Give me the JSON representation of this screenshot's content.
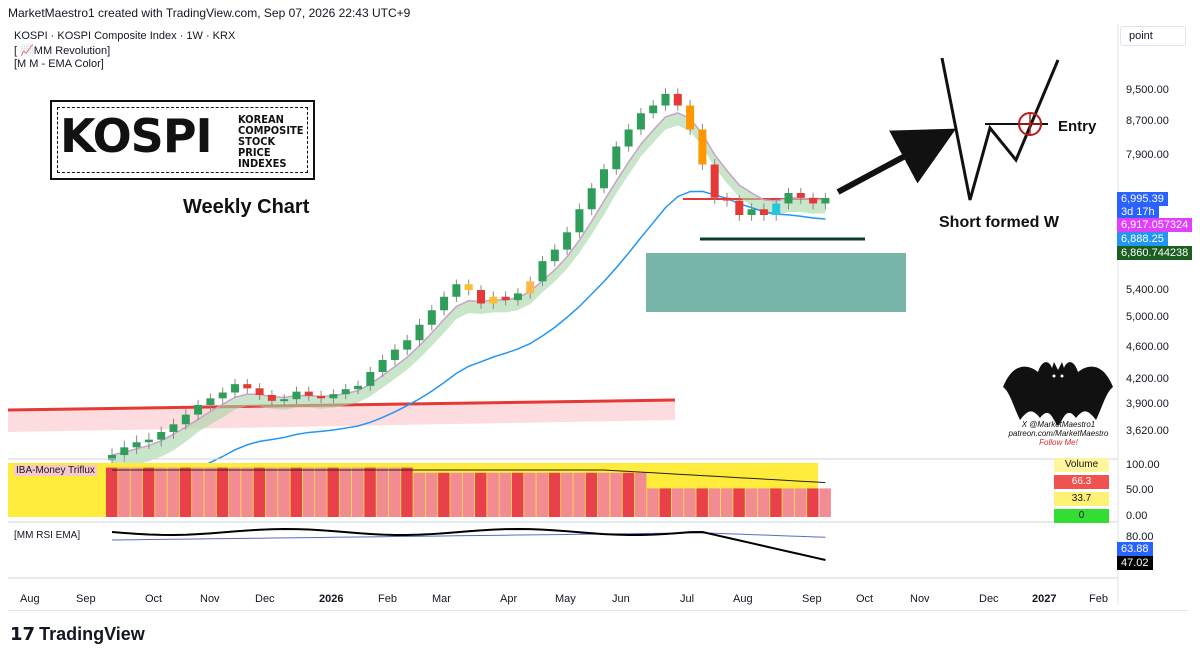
{
  "header": {
    "creator_line": "MarketMaestro1 created with TradingView.com, Sep 07, 2026 22:43 UTC+9",
    "symbol_line": "KOSPI · KOSPI Composite Index · 1W · KRX",
    "indicator_1": "[ 📈MM Revolution]",
    "indicator_2": "[M M - EMA Color]",
    "scale_button": "point"
  },
  "annotations": {
    "logo_main": "KOSPI",
    "logo_sub_1": "KOREAN",
    "logo_sub_2": "COMPOSITE",
    "logo_sub_3": "STOCK",
    "logo_sub_4": "PRICE",
    "logo_sub_5": "INDEXES",
    "weekly_chart": "Weekly Chart",
    "short_formed_w": "Short formed W",
    "entry": "Entry",
    "bat_line_1": "X @MarketMaestro1",
    "bat_line_2": "patreon.com/MarketMaestro",
    "bat_line_3": "Follow Me!"
  },
  "price_axis": {
    "labels": [
      "9,500.00",
      "8,700.00",
      "7,900.00",
      "5,400.00",
      "5,000.00",
      "4,600.00",
      "4,200.00",
      "3,900.00",
      "3,620.00"
    ],
    "tags": [
      {
        "text": "6,995.39",
        "color": "#2962ff"
      },
      {
        "text": "3d 17h",
        "color": "#2962ff"
      },
      {
        "text": "6,917.057324",
        "color": "#e040fb"
      },
      {
        "text": "6,888.25",
        "color": "#2196f3"
      },
      {
        "text": "6,860.744238",
        "color": "#1b5e20"
      }
    ]
  },
  "time_axis": {
    "labels": [
      "Aug",
      "Sep",
      "Oct",
      "Nov",
      "Dec",
      "2026",
      "Feb",
      "Mar",
      "Apr",
      "May",
      "Jun",
      "Jul",
      "Aug",
      "Sep",
      "Oct",
      "Nov",
      "Dec",
      "2027",
      "Feb"
    ]
  },
  "triflux_pane": {
    "title": "IBA-Money Triflux",
    "axis": [
      "100.00",
      "50.00",
      "0.00"
    ],
    "legend_title": "Volume",
    "legend_values": [
      "66.3",
      "33.7",
      "0"
    ]
  },
  "rsi_pane": {
    "title": "[MM RSI EMA]",
    "axis": [
      "80.00"
    ],
    "tags": [
      {
        "text": "63.88",
        "color": "#2962ff"
      },
      {
        "text": "47.02",
        "color": "#000000"
      }
    ]
  },
  "branding": {
    "tv_name": "TradingView"
  },
  "colors": {
    "up": "#26a269",
    "down": "#e53935",
    "ema": "#2196f3",
    "support_zone": "#4a9c8c",
    "resistance_line": "#e53935"
  },
  "chart_data": {
    "type": "candlestick",
    "timeframe": "1W",
    "symbol": "KOSPI",
    "approx_range": [
      3500,
      9700
    ],
    "last_price": 6995.39,
    "ema_value": 6888.25,
    "band_values": [
      6917.057324,
      6860.744238
    ],
    "closes_estimate": [
      3440,
      3500,
      3540,
      3560,
      3620,
      3700,
      3800,
      3900,
      3980,
      4050,
      4150,
      4100,
      4020,
      3950,
      3970,
      4060,
      4010,
      3980,
      4030,
      4090,
      4130,
      4300,
      4450,
      4580,
      4700,
      4900,
      5100,
      5300,
      5500,
      5400,
      5200,
      5300,
      5250,
      5350,
      5550,
      5900,
      6100,
      6400,
      6800,
      7200,
      7600,
      8100,
      8500,
      8900,
      9100,
      9400,
      9100,
      8500,
      7700,
      7000,
      6950,
      6700,
      6800,
      6700,
      6900,
      7100,
      7000,
      6900,
      6995
    ],
    "triflux_volume": {
      "high": 66.3,
      "mid": 33.7,
      "low": 0
    },
    "rsi": {
      "ema": 63.88,
      "value": 47.02
    }
  }
}
